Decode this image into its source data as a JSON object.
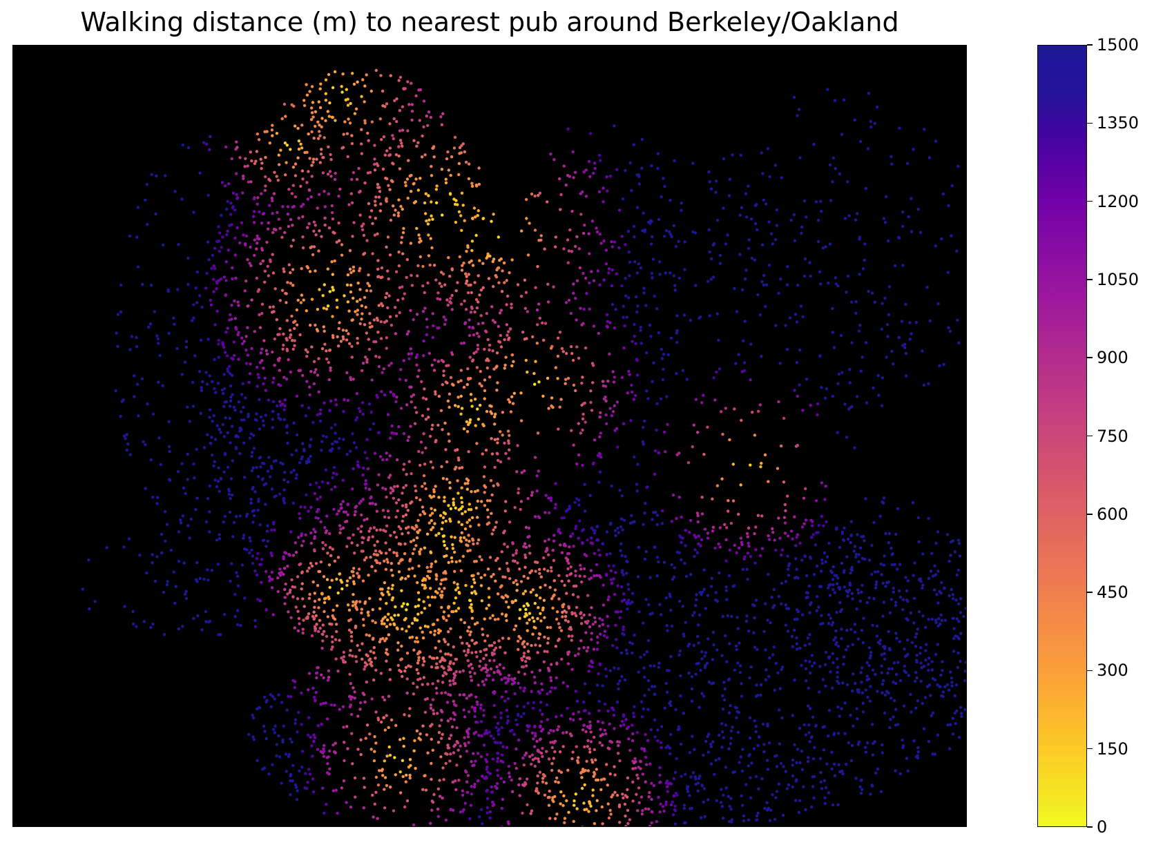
{
  "title": "Walking distance (m) to nearest pub around Berkeley/Oakland",
  "colorbar": {
    "min": 0,
    "max": 1500,
    "ticks": [
      "0",
      "150",
      "300",
      "450",
      "600",
      "750",
      "900",
      "1050",
      "1200",
      "1350",
      "1500"
    ],
    "colormap": "plasma_r"
  },
  "map": {
    "background": "#000000",
    "marker_color_far": "#1d1898",
    "marker_color_near": "#f0f921"
  }
}
